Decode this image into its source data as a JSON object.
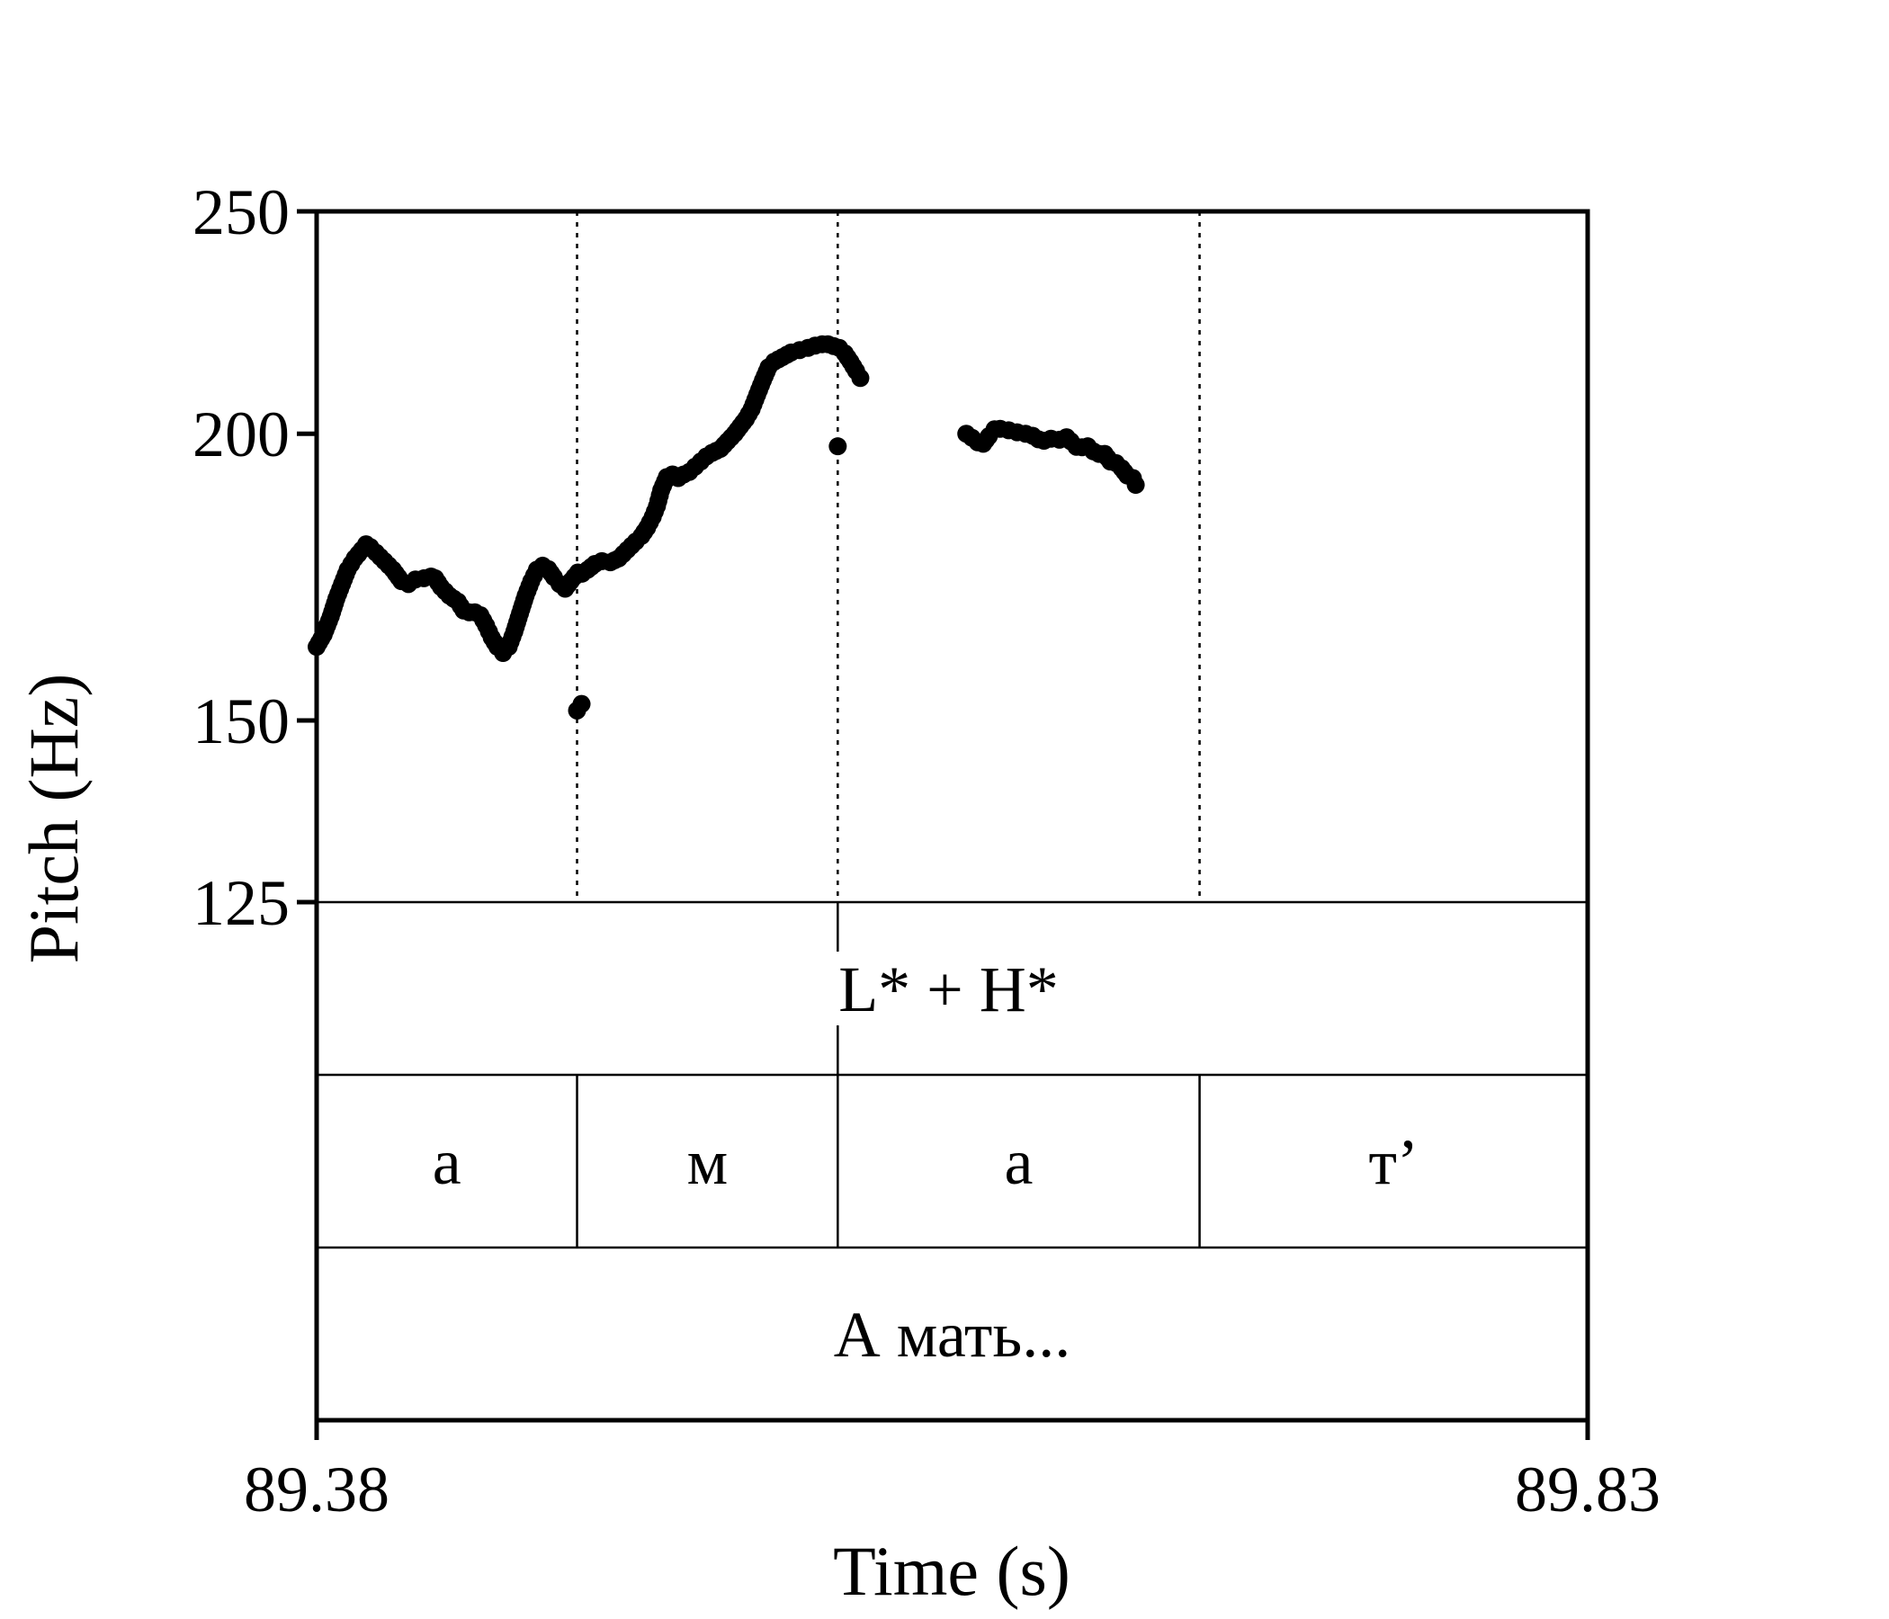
{
  "chart_data": {
    "type": "scatter",
    "xlabel": "Time (s)",
    "ylabel": "Pitch (Hz)",
    "xlim": [
      89.38,
      89.83
    ],
    "ylim": [
      125,
      250
    ],
    "y_scale": "log",
    "x_tick_labels": [
      "89.38",
      "89.83"
    ],
    "y_ticks": [
      {
        "value": 125,
        "label": "125"
      },
      {
        "value": 150,
        "label": "150"
      },
      {
        "value": 200,
        "label": "200"
      },
      {
        "value": 250,
        "label": "250"
      }
    ],
    "boundaries": [
      89.4722,
      89.5645,
      89.6926
    ],
    "tiers": [
      {
        "name": "tone",
        "intervals": [
          {
            "start": 89.38,
            "end": 89.83,
            "label": "L* + H*"
          }
        ],
        "marks": [
          89.5645
        ]
      },
      {
        "name": "phones",
        "intervals": [
          {
            "start": 89.38,
            "end": 89.4722,
            "label": "а"
          },
          {
            "start": 89.4722,
            "end": 89.5645,
            "label": "м"
          },
          {
            "start": 89.5645,
            "end": 89.6926,
            "label": "а"
          },
          {
            "start": 89.6926,
            "end": 89.83,
            "label": "т’"
          }
        ],
        "marks": []
      },
      {
        "name": "words",
        "intervals": [
          {
            "start": 89.38,
            "end": 89.83,
            "label": "А мать..."
          }
        ],
        "marks": []
      }
    ],
    "series": [
      {
        "segments": [
          [
            [
              89.38,
              161.5
            ],
            [
              89.3825,
              163.5
            ],
            [
              89.385,
              166.5
            ],
            [
              89.387,
              169.5
            ],
            [
              89.389,
              172.0
            ],
            [
              89.391,
              174.5
            ],
            [
              89.3935,
              176.5
            ],
            [
              89.396,
              178.0
            ],
            [
              89.3975,
              179.0
            ],
            [
              89.399,
              178.5
            ],
            [
              89.401,
              177.5
            ],
            [
              89.404,
              176.0
            ],
            [
              89.407,
              174.5
            ],
            [
              89.41,
              172.5
            ],
            [
              89.4125,
              172.0
            ],
            [
              89.415,
              172.8
            ],
            [
              89.418,
              173.0
            ],
            [
              89.4205,
              173.3
            ],
            [
              89.422,
              173.0
            ],
            [
              89.424,
              171.5
            ],
            [
              89.427,
              170.0
            ],
            [
              89.43,
              169.0
            ],
            [
              89.432,
              167.5
            ],
            [
              89.434,
              167.2
            ],
            [
              89.436,
              167.2
            ],
            [
              89.438,
              166.7
            ],
            [
              89.44,
              165.0
            ],
            [
              89.442,
              163.0
            ],
            [
              89.444,
              161.5
            ],
            [
              89.446,
              160.5
            ],
            [
              89.448,
              161.5
            ],
            [
              89.45,
              164.0
            ],
            [
              89.452,
              167.0
            ],
            [
              89.454,
              170.0
            ],
            [
              89.456,
              172.5
            ],
            [
              89.458,
              174.5
            ],
            [
              89.46,
              175.2
            ],
            [
              89.462,
              174.6
            ],
            [
              89.464,
              173.2
            ],
            [
              89.466,
              172.0
            ],
            [
              89.468,
              171.2
            ],
            [
              89.47,
              172.5
            ],
            [
              89.4725,
              174.0
            ],
            [
              89.474,
              173.8
            ],
            [
              89.476,
              174.5
            ],
            [
              89.4785,
              175.5
            ],
            [
              89.481,
              176.0
            ],
            [
              89.484,
              175.8
            ],
            [
              89.487,
              176.5
            ],
            [
              89.49,
              178.0
            ],
            [
              89.493,
              179.5
            ],
            [
              89.495,
              180.5
            ],
            [
              89.497,
              182.0
            ],
            [
              89.499,
              184.0
            ],
            [
              89.5005,
              186.0
            ],
            [
              89.502,
              189.0
            ],
            [
              89.504,
              191.5
            ],
            [
              89.506,
              192.0
            ],
            [
              89.508,
              191.3
            ],
            [
              89.51,
              192.0
            ],
            [
              89.512,
              192.5
            ],
            [
              89.514,
              193.5
            ],
            [
              89.516,
              194.5
            ],
            [
              89.518,
              195.5
            ],
            [
              89.52,
              196.2
            ],
            [
              89.523,
              197.0
            ],
            [
              89.5255,
              198.5
            ],
            [
              89.528,
              200.0
            ],
            [
              89.53,
              201.5
            ],
            [
              89.532,
              203.0
            ],
            [
              89.534,
              205.0
            ],
            [
              89.536,
              208.0
            ],
            [
              89.538,
              211.0
            ],
            [
              89.54,
              213.8
            ],
            [
              89.542,
              215.0
            ],
            [
              89.545,
              216.0
            ],
            [
              89.548,
              217.0
            ],
            [
              89.551,
              217.5
            ],
            [
              89.554,
              218.0
            ],
            [
              89.5565,
              218.5
            ],
            [
              89.559,
              218.8
            ],
            [
              89.561,
              218.8
            ],
            [
              89.563,
              218.4
            ],
            [
              89.565,
              218.0
            ],
            [
              89.567,
              216.8
            ],
            [
              89.569,
              215.0
            ],
            [
              89.571,
              213.0
            ],
            [
              89.5725,
              211.5
            ]
          ],
          [
            [
              89.4722,
              151.5
            ],
            [
              89.4738,
              152.5
            ]
          ],
          [
            [
              89.5645,
              197.5
            ]
          ],
          [
            [
              89.61,
              200.0
            ],
            [
              89.612,
              199.2
            ],
            [
              89.614,
              198.3
            ],
            [
              89.616,
              198.0
            ],
            [
              89.618,
              199.5
            ],
            [
              89.62,
              200.9
            ],
            [
              89.622,
              201.0
            ],
            [
              89.625,
              200.7
            ],
            [
              89.628,
              200.3
            ],
            [
              89.631,
              200.0
            ],
            [
              89.6335,
              199.6
            ],
            [
              89.6355,
              198.9
            ],
            [
              89.6375,
              198.6
            ],
            [
              89.64,
              199.0
            ],
            [
              89.643,
              198.8
            ],
            [
              89.6455,
              199.3
            ],
            [
              89.647,
              198.5
            ],
            [
              89.649,
              197.4
            ],
            [
              89.651,
              197.3
            ],
            [
              89.653,
              197.5
            ],
            [
              89.655,
              196.5
            ],
            [
              89.657,
              196.0
            ],
            [
              89.659,
              196.0
            ],
            [
              89.661,
              194.5
            ],
            [
              89.663,
              194.2
            ],
            [
              89.665,
              193.2
            ],
            [
              89.667,
              191.8
            ],
            [
              89.669,
              191.3
            ],
            [
              89.67,
              190.0
            ]
          ]
        ]
      }
    ]
  }
}
